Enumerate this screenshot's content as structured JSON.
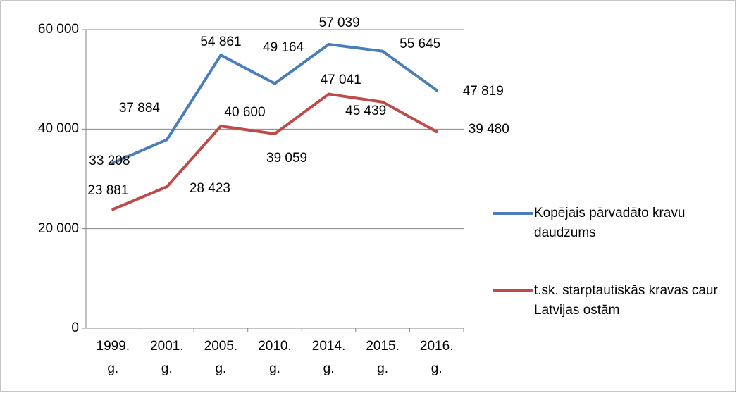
{
  "chart_data": {
    "type": "line",
    "categories": [
      "1999. g.",
      "2001. g.",
      "2005. g.",
      "2010. g.",
      "2014. g.",
      "2015. g.",
      "2016. g."
    ],
    "series": [
      {
        "name": "Kopējais pārvadāto kravu daudzums",
        "color": "#4a7ebb",
        "values": [
          33208,
          37884,
          54861,
          49164,
          57039,
          55645,
          47819
        ],
        "value_labels": [
          "33 208",
          "37 884",
          "54 861",
          "49 164",
          "57 039",
          "55 645",
          "47 819"
        ]
      },
      {
        "name": "t.sk. starptautiskās kravas caur Latvijas ostām",
        "color": "#be4b48",
        "values": [
          23881,
          28423,
          40600,
          39059,
          47041,
          45439,
          39480
        ],
        "value_labels": [
          "23 881",
          "28 423",
          "40 600",
          "39 059",
          "47 041",
          "45 439",
          "39 480"
        ]
      }
    ],
    "ylim": [
      0,
      60000
    ],
    "yticks": [
      {
        "value": 0,
        "label": "0"
      },
      {
        "value": 20000,
        "label": "20 000"
      },
      {
        "value": 40000,
        "label": "40 000"
      },
      {
        "value": 60000,
        "label": "60 000"
      }
    ],
    "grid": true,
    "legend": "right"
  }
}
